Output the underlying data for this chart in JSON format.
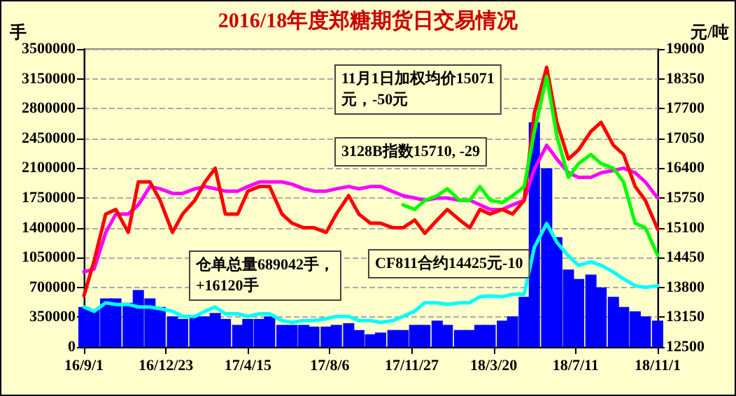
{
  "chart_data": {
    "type": "line",
    "title": "2016/18年度郑糖期货日交易情况",
    "ylabel": "手",
    "y2label": "元/吨",
    "x": [
      "2016-09-01",
      "2016-09-15",
      "2016-10-01",
      "2016-10-15",
      "2016-11-01",
      "2016-11-15",
      "2016-12-01",
      "2016-12-15",
      "2017-01-01",
      "2017-01-15",
      "2017-02-01",
      "2017-02-15",
      "2017-03-01",
      "2017-03-15",
      "2017-04-01",
      "2017-04-15",
      "2017-05-01",
      "2017-05-15",
      "2017-06-01",
      "2017-06-15",
      "2017-07-01",
      "2017-07-15",
      "2017-08-01",
      "2017-08-15",
      "2017-09-01",
      "2017-09-15",
      "2017-10-01",
      "2017-10-15",
      "2017-11-01",
      "2017-11-15",
      "2017-12-01",
      "2017-12-15",
      "2018-01-01",
      "2018-01-15",
      "2018-02-01",
      "2018-02-15",
      "2018-03-01",
      "2018-03-15",
      "2018-04-01",
      "2018-04-15",
      "2018-05-01",
      "2018-05-15",
      "2018-06-01",
      "2018-06-15",
      "2018-07-01",
      "2018-07-15",
      "2018-08-01",
      "2018-08-15",
      "2018-09-01",
      "2018-09-15",
      "2018-10-01",
      "2018-10-15",
      "2018-11-01"
    ],
    "series": [
      {
        "type": "bar",
        "color": "#0000ff",
        "values": [
          470000,
          440000,
          570000,
          570000,
          520000,
          670000,
          570000,
          470000,
          360000,
          330000,
          360000,
          360000,
          400000,
          330000,
          260000,
          330000,
          330000,
          360000,
          260000,
          260000,
          260000,
          240000,
          240000,
          260000,
          280000,
          200000,
          150000,
          170000,
          200000,
          200000,
          260000,
          260000,
          310000,
          260000,
          200000,
          200000,
          260000,
          260000,
          310000,
          360000,
          590000,
          2640000,
          2100000,
          1290000,
          910000,
          800000,
          850000,
          700000,
          590000,
          470000,
          420000,
          360000,
          310000
        ]
      },
      {
        "color": "#00ffff",
        "values": [
          470000,
          420000,
          520000,
          500000,
          500000,
          470000,
          470000,
          450000,
          420000,
          360000,
          360000,
          420000,
          470000,
          390000,
          390000,
          360000,
          390000,
          390000,
          310000,
          290000,
          310000,
          310000,
          330000,
          360000,
          360000,
          310000,
          310000,
          290000,
          310000,
          360000,
          420000,
          520000,
          520000,
          500000,
          520000,
          520000,
          590000,
          600000,
          590000,
          620000,
          620000,
          1170000,
          1450000,
          1230000,
          1070000,
          960000,
          1000000,
          960000,
          880000,
          800000,
          720000,
          700000,
          720000
        ]
      },
      {
        "axis": "y2",
        "color": "#ff00ff",
        "values": [
          14140,
          14200,
          15000,
          15400,
          15400,
          15600,
          16000,
          15950,
          15850,
          15850,
          15950,
          16000,
          15950,
          15900,
          15900,
          16000,
          16100,
          16100,
          16100,
          16050,
          15950,
          15900,
          15900,
          15950,
          16000,
          15950,
          16000,
          16000,
          15890,
          15800,
          15750,
          15700,
          15750,
          15750,
          15700,
          15700,
          15600,
          15500,
          15500,
          15600,
          15700,
          16380,
          16900,
          16600,
          16300,
          16200,
          16200,
          16300,
          16350,
          16400,
          16300,
          16100,
          15750
        ]
      },
      {
        "axis": "y2",
        "color": "#ff0000",
        "values": [
          13620,
          14380,
          15400,
          15500,
          15000,
          16100,
          16100,
          15700,
          15000,
          15400,
          15700,
          16100,
          16400,
          15400,
          15400,
          15900,
          16000,
          16000,
          15400,
          15200,
          15100,
          15100,
          15000,
          15400,
          15800,
          15400,
          15200,
          15200,
          15100,
          15100,
          15270,
          14980,
          15270,
          15500,
          15270,
          15100,
          15500,
          15400,
          15500,
          15400,
          15700,
          17600,
          18600,
          17400,
          16600,
          16800,
          17200,
          17400,
          16900,
          16700,
          16000,
          15700,
          15070
        ]
      },
      {
        "axis": "y2",
        "color": "#00ff00",
        "values": [
          null,
          null,
          null,
          null,
          null,
          null,
          null,
          null,
          null,
          null,
          null,
          null,
          null,
          null,
          null,
          null,
          null,
          null,
          null,
          null,
          null,
          null,
          null,
          null,
          null,
          null,
          null,
          null,
          null,
          15600,
          15500,
          15700,
          15800,
          15950,
          15700,
          15700,
          16000,
          15700,
          15650,
          15800,
          16000,
          17200,
          18400,
          17100,
          16200,
          16500,
          16700,
          16500,
          16400,
          16100,
          15200,
          15100,
          14500
        ]
      }
    ],
    "xlim": [
      "2016-09-01",
      "2018-11-01"
    ],
    "xticks": [
      {
        "value": "2016-09-01",
        "label": "16/9/1"
      },
      {
        "value": "2016-12-23",
        "label": "16/12/23"
      },
      {
        "value": "2017-04-15",
        "label": "17/4/15"
      },
      {
        "value": "2017-08-06",
        "label": "17/8/6"
      },
      {
        "value": "2017-11-27",
        "label": "17/11/27"
      },
      {
        "value": "2018-03-20",
        "label": "18/3/20"
      },
      {
        "value": "2018-07-11",
        "label": "18/7/11"
      },
      {
        "value": "2018-11-01",
        "label": "18/11/1"
      }
    ],
    "ylim": [
      0,
      3500000
    ],
    "yticks": [
      0,
      350000,
      700000,
      1050000,
      1400000,
      1750000,
      2100000,
      2450000,
      2800000,
      3150000,
      3500000
    ],
    "y2lim": [
      12500,
      19000
    ],
    "y2ticks": [
      12500,
      13150,
      13800,
      14450,
      15100,
      15750,
      16400,
      17050,
      17700,
      18350,
      19000
    ],
    "grid": "y",
    "marker": "none",
    "line_style": "solid",
    "annotations": [
      "11月1日加权均价15071\n元，-50元",
      "3128B指数15710, -29",
      "仓单总量689042手，\n+16120手",
      "CF811合约14425元-10"
    ]
  }
}
